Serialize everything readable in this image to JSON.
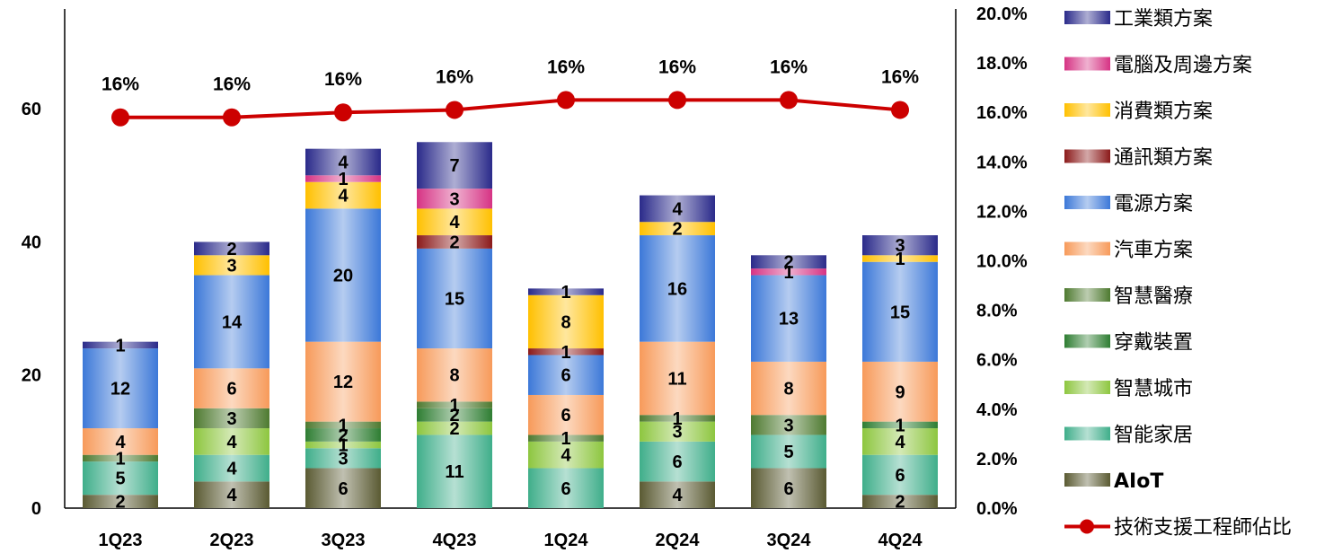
{
  "chart_data": {
    "type": "bar",
    "stacked": true,
    "categories": [
      "1Q23",
      "2Q23",
      "3Q23",
      "4Q23",
      "1Q24",
      "2Q24",
      "3Q24",
      "4Q24"
    ],
    "ylim": [
      0,
      75
    ],
    "y_ticks": [
      "0",
      "20",
      "40",
      "60"
    ],
    "y2lim": [
      0,
      20
    ],
    "y2_ticks": [
      "0.0%",
      "2.0%",
      "4.0%",
      "6.0%",
      "8.0%",
      "10.0%",
      "12.0%",
      "14.0%",
      "16.0%",
      "18.0%",
      "20.0%"
    ],
    "grid": false,
    "legend_position": "right",
    "series": [
      {
        "name": "AIoT",
        "color": "#5a5a32",
        "values": [
          2,
          4,
          6,
          0,
          0,
          4,
          6,
          2
        ],
        "labels": [
          "2",
          "4",
          "6",
          "",
          "",
          "4",
          "6",
          "2"
        ]
      },
      {
        "name": "智能家居",
        "color": "#3fae8a",
        "values": [
          5,
          4,
          3,
          11,
          6,
          6,
          5,
          6
        ],
        "labels": [
          "5",
          "4",
          "3",
          "11",
          "6",
          "6",
          "5",
          "6"
        ]
      },
      {
        "name": "智慧城市",
        "color": "#8dc63f",
        "values": [
          0,
          4,
          1,
          2,
          4,
          3,
          0,
          4
        ],
        "labels": [
          "",
          "4",
          "1",
          "2",
          "4",
          "3",
          "",
          "4"
        ]
      },
      {
        "name": "穿戴裝置",
        "color": "#2e7d32",
        "values": [
          0,
          0,
          2,
          2,
          0,
          0,
          0,
          1
        ],
        "labels": [
          "",
          "",
          "2",
          "2",
          "",
          "",
          "",
          "1"
        ]
      },
      {
        "name": "智慧醫療",
        "color": "#4e7a30",
        "values": [
          1,
          3,
          1,
          1,
          1,
          1,
          3,
          0
        ],
        "labels": [
          "1",
          "3",
          "1",
          "1",
          "1",
          "1",
          "3",
          ""
        ]
      },
      {
        "name": "汽車方案",
        "color": "#f79a5a",
        "values": [
          4,
          6,
          12,
          8,
          6,
          11,
          8,
          9
        ],
        "labels": [
          "4",
          "6",
          "12",
          "8",
          "6",
          "11",
          "8",
          "9"
        ]
      },
      {
        "name": "電源方案",
        "color": "#3c78d8",
        "values": [
          12,
          14,
          20,
          15,
          6,
          16,
          13,
          15
        ],
        "labels": [
          "12",
          "14",
          "20",
          "15",
          "6",
          "16",
          "13",
          "15"
        ]
      },
      {
        "name": "通訊類方案",
        "color": "#8b1a1a",
        "values": [
          0,
          0,
          0,
          2,
          1,
          0,
          0,
          0
        ],
        "labels": [
          "",
          "",
          "",
          "2",
          "1",
          "",
          "",
          ""
        ]
      },
      {
        "name": "消費類方案",
        "color": "#ffc000",
        "values": [
          0,
          3,
          4,
          4,
          8,
          2,
          0,
          1
        ],
        "labels": [
          "",
          "3",
          "4",
          "4",
          "8",
          "2",
          "",
          "1"
        ]
      },
      {
        "name": "電腦及周邊方案",
        "color": "#d63384",
        "values": [
          0,
          0,
          1,
          3,
          0,
          0,
          1,
          0
        ],
        "labels": [
          "",
          "",
          "1",
          "3",
          "",
          "",
          "1",
          ""
        ]
      },
      {
        "name": "工業類方案",
        "color": "#2a2a8a",
        "values": [
          1,
          2,
          4,
          7,
          1,
          4,
          2,
          3
        ],
        "labels": [
          "1",
          "2",
          "4",
          "7",
          "1",
          "4",
          "2",
          "3"
        ]
      }
    ],
    "line_series": {
      "name": "技術支援工程師佔比",
      "color": "#cc0000",
      "axis": "secondary",
      "values": [
        15.8,
        15.8,
        16.0,
        16.1,
        16.5,
        16.5,
        16.5,
        16.1
      ],
      "labels": [
        "16%",
        "16%",
        "16%",
        "16%",
        "16%",
        "16%",
        "16%",
        "16%"
      ]
    },
    "legend_order": [
      "工業類方案",
      "電腦及周邊方案",
      "消費類方案",
      "通訊類方案",
      "電源方案",
      "汽車方案",
      "智慧醫療",
      "穿戴裝置",
      "智慧城市",
      "智能家居",
      "AIoT",
      "技術支援工程師佔比"
    ]
  }
}
